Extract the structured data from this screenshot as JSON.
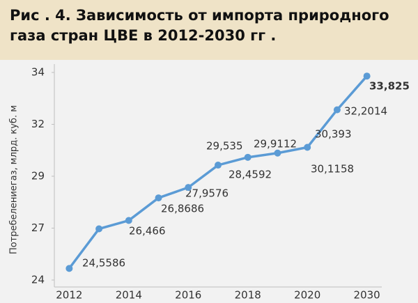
{
  "chart_data": {
    "type": "line",
    "title": "Рис . 4. Зависимость от импорта природного газа стран ЦВЕ в 2012-2030 гг .",
    "y_label": "Потребелениегаз, млрд. куб. м",
    "categories": [
      "2012",
      null,
      "2014",
      null,
      "2016",
      null,
      "2018",
      null,
      "2020",
      null,
      "2030"
    ],
    "series": [
      {
        "color": "#5b9bd5",
        "values": [
          24.5586,
          26.466,
          26.8686,
          27.9576,
          28.4592,
          29.535,
          29.9112,
          30.1158,
          30.393,
          32.2014,
          33.825
        ],
        "value_labels": [
          "24,5586",
          "26,466",
          "26,8686",
          "27,9576",
          "28,4592",
          "29,535",
          "29,9112",
          "30,1158",
          "30,393",
          "32,2014",
          "33,825"
        ]
      }
    ],
    "ylim": [
      24,
      34
    ],
    "yticks": [
      24,
      {
        "value": 26.5,
        "label": "27"
      },
      29,
      {
        "value": 31.5,
        "label": "32"
      },
      34
    ],
    "grid": false
  }
}
